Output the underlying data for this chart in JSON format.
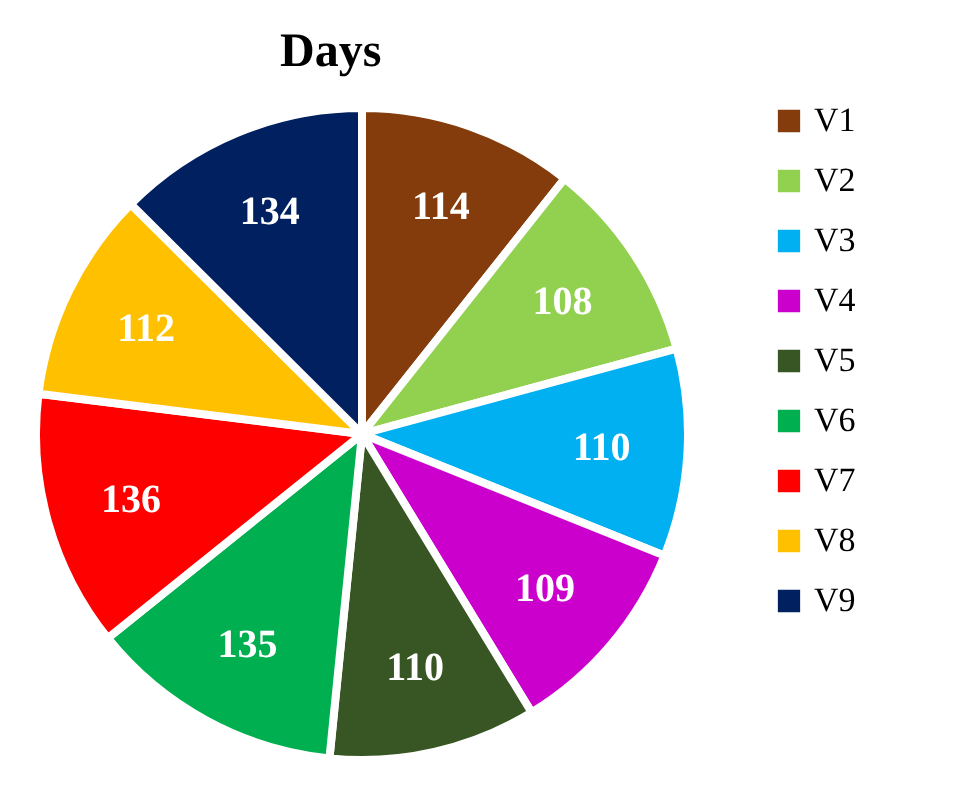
{
  "chart_data": {
    "type": "pie",
    "title": "Days",
    "categories": [
      "V1",
      "V2",
      "V3",
      "V4",
      "V5",
      "V6",
      "V7",
      "V8",
      "V9"
    ],
    "values": [
      114,
      108,
      110,
      109,
      110,
      135,
      136,
      112,
      134
    ],
    "colors": [
      "#843c0c",
      "#92d050",
      "#00b0f0",
      "#cc00cc",
      "#375623",
      "#00b050",
      "#ff0000",
      "#ffc000",
      "#002060"
    ],
    "data_labels": true,
    "legend": "right"
  }
}
